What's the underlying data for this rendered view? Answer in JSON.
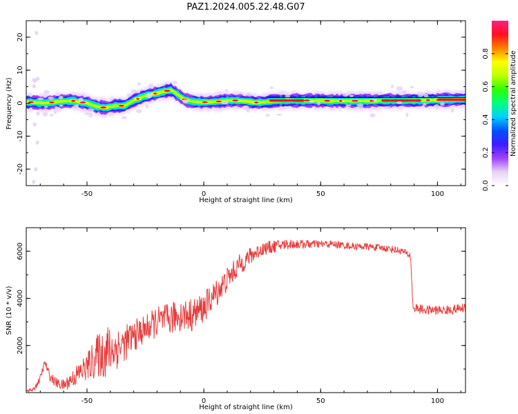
{
  "title": "PAZ1.2024.005.22.48.G07",
  "chart_data": [
    {
      "type": "heatmap",
      "xlabel": "Height of straight line (km)",
      "ylabel": "Frequency (Hz)",
      "xlim": [
        -76,
        112
      ],
      "ylim": [
        -25,
        25
      ],
      "xticks": [
        -50,
        0,
        50,
        100
      ],
      "yticks": [
        -20,
        -10,
        0,
        10,
        20
      ],
      "colorbar": {
        "label": "Normalized spectral amplitude",
        "range": [
          0,
          1
        ],
        "ticks": [
          "0.0",
          "0.2",
          "0.4",
          "0.6",
          "0.8"
        ],
        "tick_values": [
          0,
          0.2,
          0.4,
          0.6,
          0.8
        ],
        "colormap": [
          "#ffffff",
          "#e6d2f5",
          "#a040ff",
          "#3c1cff",
          "#0050ff",
          "#00d0ff",
          "#00ff80",
          "#30ff00",
          "#c0ff00",
          "#ffff00",
          "#ff8000",
          "#ff1020",
          "#ff2080"
        ]
      },
      "ridge": {
        "x": [
          -74,
          -68,
          -62,
          -56,
          -50,
          -46,
          -42,
          -38,
          -34,
          -30,
          -26,
          -22,
          -18,
          -14,
          -11,
          -8,
          -5,
          -2,
          2,
          6,
          10,
          14,
          18,
          22,
          26,
          30,
          36,
          42,
          48,
          54,
          60,
          66,
          72,
          78,
          84,
          90,
          96,
          102,
          108,
          112
        ],
        "y": [
          0.3,
          0.0,
          0.5,
          0.7,
          0.0,
          -1.0,
          -1.4,
          -0.8,
          -0.8,
          0.8,
          2.0,
          2.7,
          3.4,
          4.0,
          2.5,
          1.0,
          0.5,
          0.3,
          0.3,
          0.5,
          0.8,
          0.8,
          0.6,
          0.2,
          0.3,
          0.7,
          0.8,
          0.8,
          0.8,
          0.7,
          0.7,
          0.7,
          0.7,
          0.8,
          0.8,
          0.8,
          0.9,
          1.0,
          1.1,
          1.2
        ]
      },
      "band_line": {
        "x": [
          28,
          112
        ],
        "y": [
          1.7,
          1.7
        ]
      }
    },
    {
      "type": "line",
      "xlabel": "Height of straight line (km)",
      "ylabel": "SNR (10 * v/v)",
      "xlim": [
        -76,
        112
      ],
      "ylim": [
        0,
        7000
      ],
      "xticks": [
        -50,
        0,
        50,
        100
      ],
      "yticks": [
        2000,
        4000,
        6000
      ],
      "color": "#e83a3a",
      "trend": {
        "x": [
          -76,
          -73,
          -70,
          -68,
          -66,
          -63,
          -60,
          -55,
          -50,
          -45,
          -40,
          -35,
          -30,
          -25,
          -20,
          -15,
          -10,
          -5,
          0,
          5,
          10,
          15,
          20,
          25,
          30,
          35,
          40,
          45,
          50,
          55,
          60,
          65,
          70,
          75,
          80,
          85,
          88.5,
          89.5,
          95,
          100,
          105,
          112
        ],
        "y": [
          100,
          100,
          600,
          1300,
          700,
          400,
          300,
          700,
          1100,
          1600,
          1800,
          2000,
          2400,
          2700,
          3000,
          3100,
          3300,
          3300,
          3600,
          4200,
          4800,
          5400,
          5800,
          6100,
          6200,
          6300,
          6300,
          6300,
          6300,
          6300,
          6250,
          6200,
          6200,
          6150,
          6100,
          6000,
          5800,
          3600,
          3500,
          3500,
          3500,
          3600
        ]
      },
      "noise": {
        "x": [
          -76,
          -70,
          -60,
          -50,
          -42,
          -35,
          -25,
          -15,
          -5,
          5,
          15,
          25,
          40,
          60,
          80,
          88,
          90,
          112
        ],
        "amplitude": [
          50,
          150,
          250,
          600,
          1200,
          800,
          600,
          700,
          700,
          600,
          450,
          300,
          200,
          150,
          150,
          150,
          200,
          200
        ]
      }
    }
  ]
}
